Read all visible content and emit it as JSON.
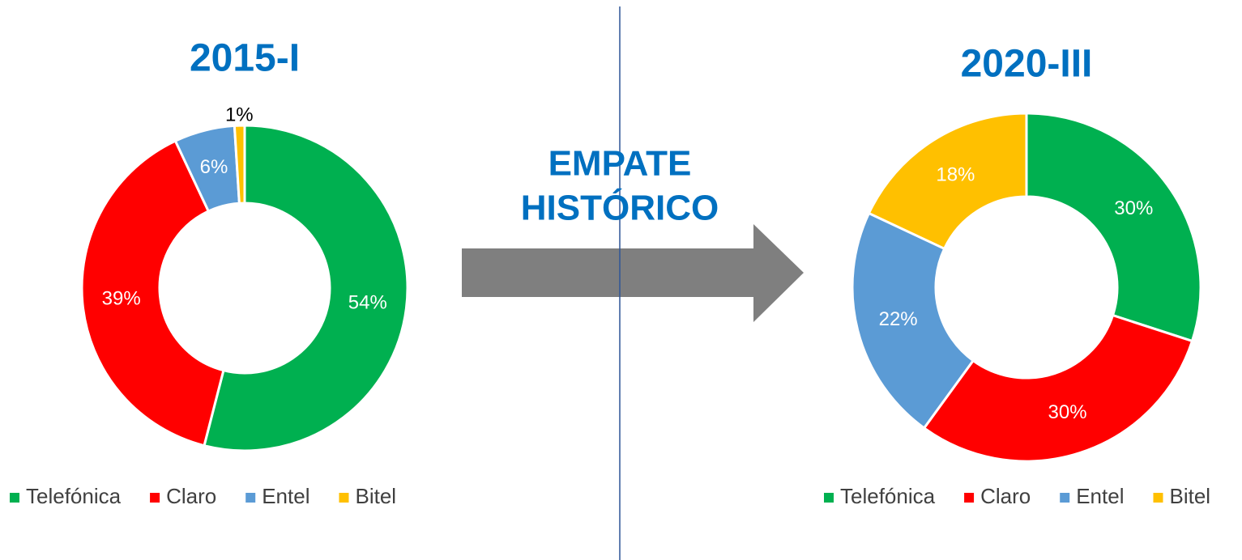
{
  "annotation": [
    "EMPATE",
    "HISTÓRICO"
  ],
  "chart_data": [
    {
      "type": "pie",
      "title": "2015-I",
      "categories": [
        "Telefónica",
        "Claro",
        "Entel",
        "Bitel"
      ],
      "values": [
        54,
        39,
        6,
        1
      ],
      "value_labels": [
        "54%",
        "39%",
        "6%",
        "1%"
      ],
      "colors": [
        "#00b050",
        "#ff0000",
        "#5b9bd5",
        "#ffc000"
      ],
      "legend": "bottom"
    },
    {
      "type": "pie",
      "title": "2020-III",
      "categories": [
        "Telefónica",
        "Claro",
        "Entel",
        "Bitel"
      ],
      "values": [
        30,
        30,
        22,
        18
      ],
      "value_labels": [
        "30%",
        "30%",
        "22%",
        "18%"
      ],
      "colors": [
        "#00b050",
        "#ff0000",
        "#5b9bd5",
        "#ffc000"
      ],
      "legend": "bottom"
    }
  ]
}
